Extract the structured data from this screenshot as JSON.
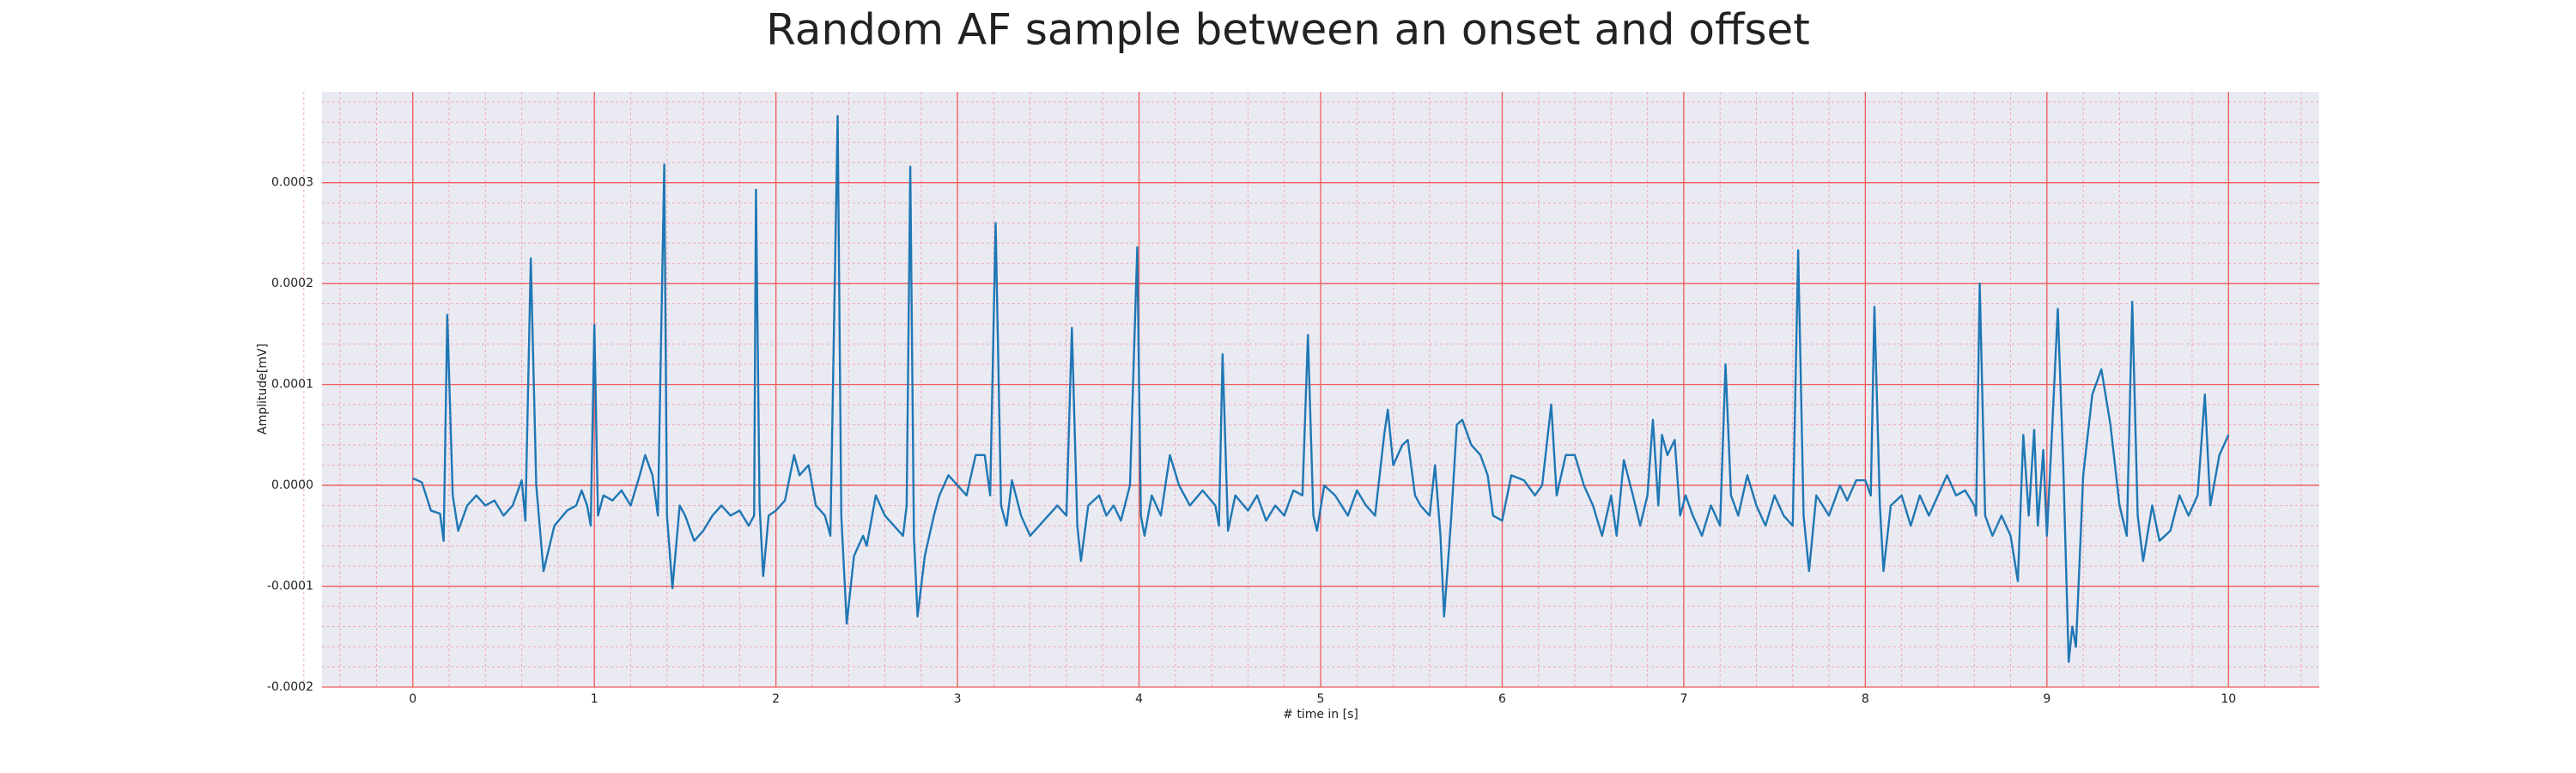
{
  "chart_data": {
    "type": "line",
    "title": "Random AF sample between an onset and offset",
    "x_label": "# time in [s]",
    "y_label": "Amplitude[mV]",
    "xlim": [
      -0.5,
      10.5
    ],
    "ylim": [
      -0.0002,
      0.00039
    ],
    "xticks": [
      0,
      1,
      2,
      3,
      4,
      5,
      6,
      7,
      8,
      9,
      10
    ],
    "yticks": [
      -0.0002,
      -0.0001,
      {
        "value": 0,
        "label": "0.0000"
      },
      0.0001,
      0.0002,
      0.0003
    ],
    "grid": true,
    "minor_grid": true,
    "series": [
      {
        "color": "#1f77b4",
        "x": [
          0,
          0.05,
          0.1,
          0.15,
          0.17,
          0.19,
          0.22,
          0.25,
          0.3,
          0.35,
          0.4,
          0.45,
          0.5,
          0.55,
          0.6,
          0.62,
          0.65,
          0.68,
          0.72,
          0.78,
          0.85,
          0.9,
          0.93,
          0.96,
          0.98,
          1.0,
          1.02,
          1.05,
          1.1,
          1.15,
          1.2,
          1.25,
          1.28,
          1.32,
          1.35,
          1.385,
          1.4,
          1.43,
          1.47,
          1.5,
          1.55,
          1.6,
          1.65,
          1.7,
          1.75,
          1.8,
          1.85,
          1.88,
          1.89,
          1.91,
          1.93,
          1.96,
          2.0,
          2.05,
          2.1,
          2.13,
          2.18,
          2.22,
          2.27,
          2.3,
          2.34,
          2.36,
          2.39,
          2.43,
          2.48,
          2.5,
          2.55,
          2.6,
          2.65,
          2.7,
          2.72,
          2.74,
          2.76,
          2.78,
          2.82,
          2.87,
          2.9,
          2.95,
          3.0,
          3.05,
          3.1,
          3.15,
          3.18,
          3.21,
          3.24,
          3.27,
          3.3,
          3.35,
          3.4,
          3.45,
          3.5,
          3.55,
          3.6,
          3.63,
          3.66,
          3.68,
          3.72,
          3.78,
          3.82,
          3.86,
          3.9,
          3.95,
          3.99,
          4.01,
          4.03,
          4.07,
          4.12,
          4.17,
          4.22,
          4.28,
          4.35,
          4.42,
          4.44,
          4.46,
          4.49,
          4.53,
          4.6,
          4.65,
          4.7,
          4.75,
          4.8,
          4.85,
          4.9,
          4.93,
          4.96,
          4.98,
          5.02,
          5.08,
          5.15,
          5.2,
          5.25,
          5.3,
          5.35,
          5.37,
          5.4,
          5.45,
          5.48,
          5.52,
          5.55,
          5.6,
          5.63,
          5.66,
          5.68,
          5.72,
          5.75,
          5.78,
          5.83,
          5.88,
          5.92,
          5.95,
          6.0,
          6.05,
          6.12,
          6.18,
          6.22,
          6.27,
          6.3,
          6.35,
          6.4,
          6.45,
          6.5,
          6.55,
          6.6,
          6.63,
          6.67,
          6.72,
          6.76,
          6.8,
          6.83,
          6.86,
          6.88,
          6.91,
          6.95,
          6.98,
          7.01,
          7.05,
          7.1,
          7.15,
          7.2,
          7.23,
          7.26,
          7.3,
          7.35,
          7.4,
          7.45,
          7.5,
          7.55,
          7.6,
          7.63,
          7.66,
          7.69,
          7.73,
          7.8,
          7.86,
          7.9,
          7.95,
          8.0,
          8.03,
          8.05,
          8.08,
          8.1,
          8.14,
          8.2,
          8.25,
          8.3,
          8.35,
          8.4,
          8.45,
          8.5,
          8.55,
          8.6,
          8.61,
          8.63,
          8.66,
          8.7,
          8.75,
          8.8,
          8.84,
          8.87,
          8.9,
          8.93,
          8.95,
          8.98,
          9.0,
          9.03,
          9.06,
          9.09,
          9.12,
          9.14,
          9.16,
          9.2,
          9.25,
          9.3,
          9.35,
          9.4,
          9.44,
          9.47,
          9.5,
          9.53,
          9.58,
          9.62,
          9.68,
          9.73,
          9.78,
          9.83,
          9.87,
          9.9,
          9.95,
          10.0
        ],
        "values": [
          7e-06,
          3e-06,
          -2.5e-05,
          -2.8e-05,
          -5.5e-05,
          0.000169,
          -1e-05,
          -4.5e-05,
          -2e-05,
          -1e-05,
          -2e-05,
          -1.5e-05,
          -3e-05,
          -2e-05,
          5e-06,
          -3.5e-05,
          0.000225,
          0,
          -8.5e-05,
          -4e-05,
          -2.5e-05,
          -2e-05,
          -5e-06,
          -2e-05,
          -4e-05,
          0.000159,
          -3e-05,
          -1e-05,
          -1.5e-05,
          -5e-06,
          -2e-05,
          1e-05,
          3e-05,
          1e-05,
          -3e-05,
          0.000318,
          -3e-05,
          -0.000102,
          -2e-05,
          -3e-05,
          -5.5e-05,
          -4.5e-05,
          -3e-05,
          -2e-05,
          -3e-05,
          -2.5e-05,
          -4e-05,
          -3e-05,
          0.000293,
          -2e-05,
          -9e-05,
          -3e-05,
          -2.5e-05,
          -1.5e-05,
          3e-05,
          1e-05,
          2e-05,
          -2e-05,
          -3e-05,
          -5e-05,
          0.000366,
          -3e-05,
          -0.000137,
          -7e-05,
          -5e-05,
          -6e-05,
          -1e-05,
          -3e-05,
          -4e-05,
          -5e-05,
          -2e-05,
          0.000316,
          -5e-05,
          -0.00013,
          -7e-05,
          -3e-05,
          -1e-05,
          1e-05,
          0,
          -1e-05,
          3e-05,
          3e-05,
          -1e-05,
          0.00026,
          -2e-05,
          -4e-05,
          5e-06,
          -3e-05,
          -5e-05,
          -4e-05,
          -3e-05,
          -2e-05,
          -3e-05,
          0.000156,
          -4e-05,
          -7.5e-05,
          -2e-05,
          -1e-05,
          -3e-05,
          -2e-05,
          -3.5e-05,
          0,
          0.000236,
          -3e-05,
          -5e-05,
          -1e-05,
          -3e-05,
          3e-05,
          0,
          -2e-05,
          -5e-06,
          -2e-05,
          -4e-05,
          0.00013,
          -4.5e-05,
          -1e-05,
          -2.5e-05,
          -1e-05,
          -3.5e-05,
          -2e-05,
          -3e-05,
          -5e-06,
          -1e-05,
          0.000149,
          -3e-05,
          -4.5e-05,
          0,
          -1e-05,
          -3e-05,
          -5e-06,
          -2e-05,
          -3e-05,
          5e-05,
          7.5e-05,
          2e-05,
          4e-05,
          4.5e-05,
          -1e-05,
          -2e-05,
          -3e-05,
          2e-05,
          -5e-05,
          -0.00013,
          -3e-05,
          6e-05,
          6.5e-05,
          4e-05,
          3e-05,
          1e-05,
          -3e-05,
          -3.5e-05,
          1e-05,
          5e-06,
          -1e-05,
          0,
          8e-05,
          -1e-05,
          3e-05,
          3e-05,
          0,
          -2e-05,
          -5e-05,
          -1e-05,
          -5e-05,
          2.5e-05,
          -1e-05,
          -4e-05,
          -1e-05,
          6.5e-05,
          -2e-05,
          5e-05,
          3e-05,
          4.5e-05,
          -3e-05,
          -1e-05,
          -3e-05,
          -5e-05,
          -2e-05,
          -4e-05,
          0.00012,
          -1e-05,
          -3e-05,
          1e-05,
          -2e-05,
          -4e-05,
          -1e-05,
          -3e-05,
          -4e-05,
          0.000233,
          -3e-05,
          -8.5e-05,
          -1e-05,
          -3e-05,
          0,
          -1.5e-05,
          5e-06,
          5e-06,
          -1e-05,
          0.000177,
          -2e-05,
          -8.5e-05,
          -2e-05,
          -1e-05,
          -4e-05,
          -1e-05,
          -3e-05,
          -1e-05,
          1e-05,
          -1e-05,
          -5e-06,
          -2e-05,
          -3e-05,
          0.0002,
          -3e-05,
          -5e-05,
          -3e-05,
          -5e-05,
          -9.5e-05,
          5e-05,
          -3e-05,
          5.5e-05,
          -4e-05,
          3.5e-05,
          -5e-05,
          6e-05,
          0.000175,
          2e-05,
          -0.000175,
          -0.00014,
          -0.00016,
          1e-05,
          9e-05,
          0.000115,
          6e-05,
          -2e-05,
          -5e-05,
          0.000182,
          -3e-05,
          -7.5e-05,
          -2e-05,
          -5.5e-05,
          -4.5e-05,
          -1e-05,
          -3e-05,
          -1e-05,
          9e-05,
          -2e-05,
          3e-05,
          5e-05
        ]
      }
    ]
  }
}
